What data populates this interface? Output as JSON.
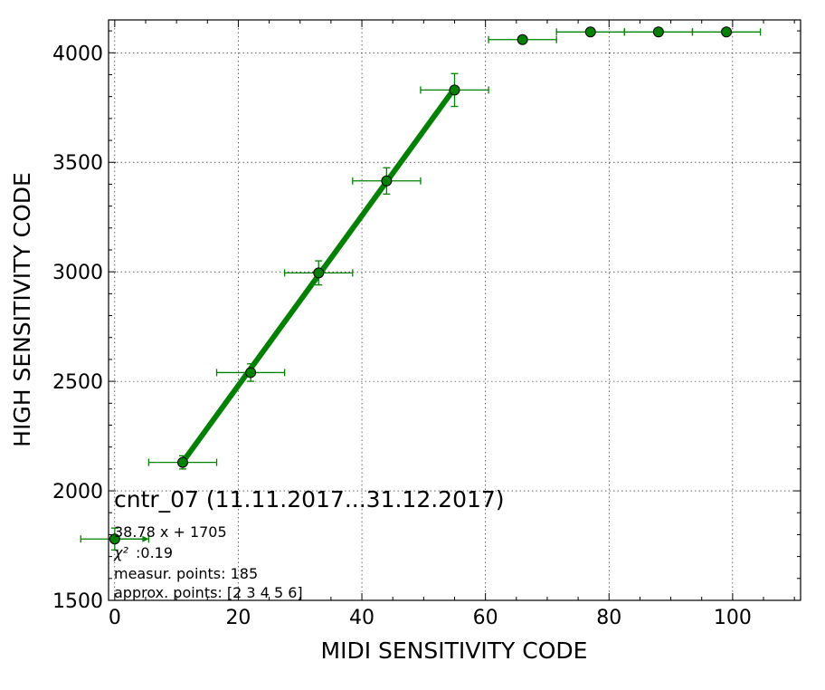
{
  "colors": {
    "series": "#008000",
    "marker_edge": "#000000",
    "grid": "#000000"
  },
  "chart_data": {
    "type": "scatter",
    "title": "",
    "xlabel": "MIDI SENSITIVITY CODE",
    "ylabel": "HIGH SENSITIVITY CODE",
    "xlim": [
      -1,
      111
    ],
    "ylim": [
      1500,
      4150
    ],
    "xticks": [
      0,
      20,
      40,
      60,
      80,
      100
    ],
    "yticks": [
      1500,
      2000,
      2500,
      3000,
      3500,
      4000
    ],
    "grid": true,
    "points": [
      {
        "x": 0,
        "y": 1780,
        "xerr": 5.5,
        "yerr": 50
      },
      {
        "x": 11,
        "y": 2130,
        "xerr": 5.5,
        "yerr": 30
      },
      {
        "x": 22,
        "y": 2540,
        "xerr": 5.5,
        "yerr": 40
      },
      {
        "x": 33,
        "y": 2995,
        "xerr": 5.5,
        "yerr": 55
      },
      {
        "x": 44,
        "y": 3415,
        "xerr": 5.5,
        "yerr": 60
      },
      {
        "x": 55,
        "y": 3830,
        "xerr": 5.5,
        "yerr": 75
      },
      {
        "x": 66,
        "y": 4060,
        "xerr": 5.5,
        "yerr": 0
      },
      {
        "x": 77,
        "y": 4095,
        "xerr": 5.5,
        "yerr": 0
      },
      {
        "x": 88,
        "y": 4095,
        "xerr": 5.5,
        "yerr": 0
      },
      {
        "x": 99,
        "y": 4095,
        "xerr": 5.5,
        "yerr": 0
      }
    ],
    "fit": {
      "slope": 38.78,
      "intercept": 1705,
      "x_from": 11,
      "x_to": 55
    },
    "annotation": {
      "title": "cntr_07 (11.11.2017...31.12.2017)",
      "equation": "38.78 x + 1705",
      "chi2_symbol": "χ²",
      "chi2_value": ":0.19",
      "measur_points": "measur. points: 185",
      "approx_points": "approx. points: [2 3 4 5 6]"
    }
  }
}
